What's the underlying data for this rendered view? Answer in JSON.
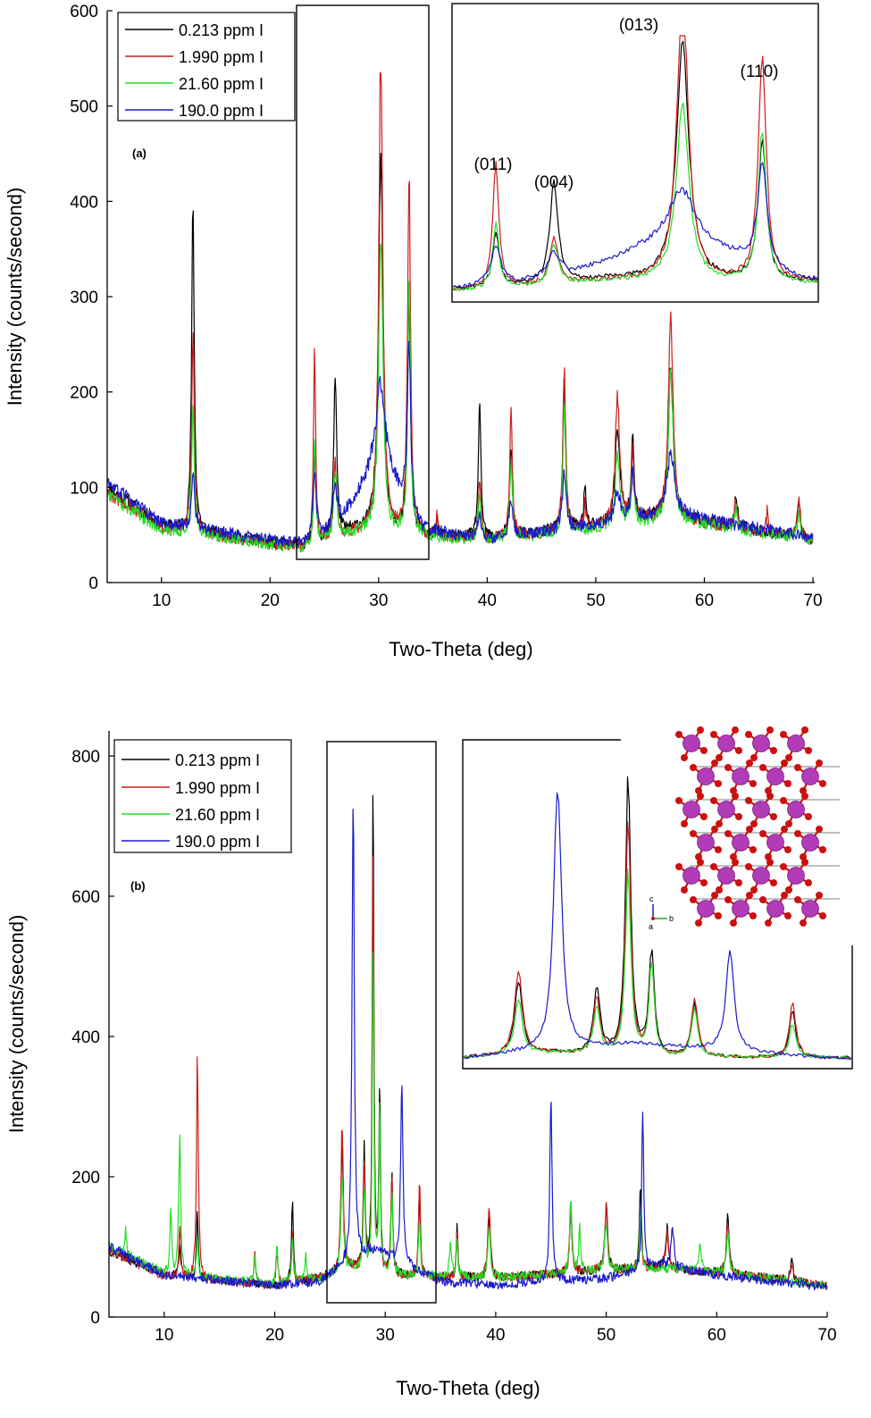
{
  "colors": {
    "0.213 ppm I": "#000000",
    "1.990 ppm I": "#cc1f1f",
    "21.60 ppm I": "#22dd22",
    "190.0 ppm I": "#1a1acc",
    "atom_I": "#b23cb8",
    "atom_O": "#cc1010"
  },
  "chart_data": [
    {
      "panel": "(a)",
      "type": "line",
      "xlabel": "Two-Theta (deg)",
      "ylabel": "Intensity (counts/second)",
      "xlim": [
        5,
        70
      ],
      "ylim": [
        0,
        600
      ],
      "xticks": [
        10,
        20,
        30,
        40,
        50,
        60,
        70
      ],
      "yticks": [
        0,
        100,
        200,
        300,
        400,
        500,
        600
      ],
      "legend": [
        "0.213 ppm I",
        "1.990 ppm I",
        "21.60 ppm I",
        "190.0 ppm I"
      ],
      "legend_position": "top-left",
      "zoom_box_x": [
        22.7,
        34.6
      ],
      "inset_peak_labels": [
        "(011)",
        "(004)",
        "(013)",
        "(110)"
      ],
      "series": [
        {
          "name": "0.213 ppm I",
          "background": [
            [
              5,
              100
            ],
            [
              10,
              60
            ],
            [
              20,
              42
            ],
            [
              23,
              38
            ],
            [
              28,
              55
            ],
            [
              34,
              50
            ],
            [
              40,
              45
            ],
            [
              50,
              60
            ],
            [
              57,
              70
            ],
            [
              62,
              60
            ],
            [
              70,
              45
            ]
          ],
          "peaks": [
            [
              12.9,
              345,
              0.14
            ],
            [
              24.1,
              95,
              0.12
            ],
            [
              26.0,
              170,
              0.16
            ],
            [
              30.2,
              400,
              0.25
            ],
            [
              32.8,
              240,
              0.16
            ],
            [
              35.4,
              15,
              0.1
            ],
            [
              39.3,
              135,
              0.15
            ],
            [
              42.2,
              95,
              0.15
            ],
            [
              47.1,
              165,
              0.15
            ],
            [
              49.0,
              40,
              0.12
            ],
            [
              52.0,
              100,
              0.25
            ],
            [
              53.4,
              95,
              0.15
            ],
            [
              56.9,
              160,
              0.25
            ],
            [
              62.9,
              35,
              0.15
            ],
            [
              68.7,
              40,
              0.15
            ]
          ]
        },
        {
          "name": "1.990 ppm I",
          "background": [
            [
              5,
              95
            ],
            [
              10,
              58
            ],
            [
              20,
              40
            ],
            [
              23,
              36
            ],
            [
              28,
              52
            ],
            [
              34,
              48
            ],
            [
              40,
              44
            ],
            [
              50,
              58
            ],
            [
              57,
              68
            ],
            [
              62,
              58
            ],
            [
              70,
              44
            ]
          ],
          "peaks": [
            [
              12.9,
              210,
              0.14
            ],
            [
              24.1,
              210,
              0.12
            ],
            [
              26.0,
              80,
              0.16
            ],
            [
              30.2,
              500,
              0.22
            ],
            [
              32.8,
              380,
              0.16
            ],
            [
              35.4,
              25,
              0.1
            ],
            [
              39.3,
              60,
              0.15
            ],
            [
              42.2,
              130,
              0.15
            ],
            [
              47.1,
              175,
              0.15
            ],
            [
              49.0,
              25,
              0.12
            ],
            [
              52.0,
              130,
              0.25
            ],
            [
              53.4,
              75,
              0.15
            ],
            [
              56.9,
              220,
              0.25
            ],
            [
              62.9,
              30,
              0.15
            ],
            [
              65.8,
              25,
              0.12
            ],
            [
              68.7,
              45,
              0.15
            ]
          ]
        },
        {
          "name": "21.60 ppm I",
          "background": [
            [
              5,
              92
            ],
            [
              10,
              56
            ],
            [
              20,
              40
            ],
            [
              23,
              36
            ],
            [
              28,
              52
            ],
            [
              34,
              48
            ],
            [
              40,
              44
            ],
            [
              50,
              56
            ],
            [
              57,
              66
            ],
            [
              62,
              58
            ],
            [
              70,
              44
            ]
          ],
          "peaks": [
            [
              12.9,
              130,
              0.14
            ],
            [
              24.1,
              110,
              0.12
            ],
            [
              26.0,
              70,
              0.16
            ],
            [
              30.2,
              300,
              0.25
            ],
            [
              32.8,
              260,
              0.16
            ],
            [
              39.3,
              50,
              0.15
            ],
            [
              42.2,
              80,
              0.15
            ],
            [
              47.1,
              130,
              0.15
            ],
            [
              52.0,
              75,
              0.25
            ],
            [
              53.4,
              60,
              0.15
            ],
            [
              56.9,
              160,
              0.25
            ],
            [
              62.9,
              20,
              0.15
            ],
            [
              68.7,
              25,
              0.15
            ]
          ]
        },
        {
          "name": "190.0 ppm I",
          "background": [
            [
              5,
              105
            ],
            [
              10,
              62
            ],
            [
              20,
              45
            ],
            [
              23,
              40
            ],
            [
              26,
              55
            ],
            [
              28,
              90
            ],
            [
              30,
              130
            ],
            [
              34,
              55
            ],
            [
              40,
              45
            ],
            [
              50,
              60
            ],
            [
              57,
              75
            ],
            [
              62,
              62
            ],
            [
              70,
              48
            ]
          ],
          "peaks": [
            [
              12.9,
              65,
              0.15
            ],
            [
              24.1,
              65,
              0.2
            ],
            [
              26.0,
              45,
              0.25
            ],
            [
              30.2,
              80,
              0.5
            ],
            [
              32.8,
              175,
              0.18
            ],
            [
              39.3,
              25,
              0.2
            ],
            [
              42.2,
              40,
              0.2
            ],
            [
              47.1,
              60,
              0.2
            ],
            [
              52.0,
              30,
              0.3
            ],
            [
              53.4,
              45,
              0.2
            ],
            [
              56.9,
              65,
              0.35
            ]
          ]
        }
      ]
    },
    {
      "panel": "(b)",
      "type": "line",
      "xlabel": "Two-Theta (deg)",
      "ylabel": "Intensity (counts/second)",
      "xlim": [
        5,
        70
      ],
      "ylim": [
        0,
        800
      ],
      "xticks": [
        10,
        20,
        30,
        40,
        50,
        60,
        70
      ],
      "yticks": [
        0,
        200,
        400,
        600,
        800
      ],
      "legend": [
        "0.213 ppm I",
        "1.990 ppm I",
        "21.60 ppm I",
        "190.0 ppm I"
      ],
      "legend_position": "top-left",
      "zoom_box_x": [
        24.7,
        34.6
      ],
      "inset_axis_labels": [
        "c",
        "a",
        "b"
      ],
      "series": [
        {
          "name": "0.213 ppm I",
          "background": [
            [
              5,
              95
            ],
            [
              10,
              60
            ],
            [
              20,
              45
            ],
            [
              24,
              55
            ],
            [
              27,
              70
            ],
            [
              30,
              60
            ],
            [
              40,
              55
            ],
            [
              48,
              65
            ],
            [
              55,
              70
            ],
            [
              65,
              55
            ],
            [
              70,
              45
            ]
          ],
          "peaks": [
            [
              11.4,
              45,
              0.1
            ],
            [
              13.0,
              90,
              0.1
            ],
            [
              21.6,
              110,
              0.1
            ],
            [
              26.1,
              190,
              0.12
            ],
            [
              28.1,
              170,
              0.1
            ],
            [
              28.9,
              730,
              0.08
            ],
            [
              29.5,
              270,
              0.08
            ],
            [
              30.6,
              140,
              0.1
            ],
            [
              33.1,
              120,
              0.1
            ],
            [
              36.5,
              70,
              0.1
            ],
            [
              39.4,
              90,
              0.15
            ],
            [
              46.8,
              90,
              0.12
            ],
            [
              50.0,
              95,
              0.15
            ],
            [
              53.1,
              120,
              0.1
            ],
            [
              55.5,
              60,
              0.15
            ],
            [
              61.0,
              80,
              0.15
            ],
            [
              66.8,
              30,
              0.15
            ]
          ]
        },
        {
          "name": "1.990 ppm I",
          "background": [
            [
              5,
              95
            ],
            [
              10,
              58
            ],
            [
              20,
              44
            ],
            [
              24,
              55
            ],
            [
              27,
              70
            ],
            [
              30,
              58
            ],
            [
              40,
              55
            ],
            [
              48,
              65
            ],
            [
              55,
              70
            ],
            [
              65,
              55
            ],
            [
              70,
              45
            ]
          ],
          "peaks": [
            [
              11.4,
              70,
              0.1
            ],
            [
              13.0,
              320,
              0.1
            ],
            [
              18.2,
              40,
              0.1
            ],
            [
              20.2,
              50,
              0.1
            ],
            [
              21.6,
              70,
              0.1
            ],
            [
              26.1,
              215,
              0.12
            ],
            [
              28.1,
              150,
              0.1
            ],
            [
              28.9,
              610,
              0.08
            ],
            [
              29.5,
              240,
              0.08
            ],
            [
              30.6,
              150,
              0.1
            ],
            [
              33.1,
              140,
              0.1
            ],
            [
              36.5,
              60,
              0.1
            ],
            [
              39.4,
              95,
              0.15
            ],
            [
              46.8,
              100,
              0.12
            ],
            [
              50.0,
              90,
              0.15
            ],
            [
              53.1,
              90,
              0.1
            ],
            [
              55.5,
              50,
              0.15
            ],
            [
              61.0,
              70,
              0.15
            ],
            [
              66.8,
              25,
              0.15
            ]
          ]
        },
        {
          "name": "21.60 ppm I",
          "background": [
            [
              5,
              100
            ],
            [
              10,
              62
            ],
            [
              20,
              46
            ],
            [
              24,
              55
            ],
            [
              27,
              70
            ],
            [
              30,
              60
            ],
            [
              40,
              55
            ],
            [
              48,
              65
            ],
            [
              55,
              70
            ],
            [
              65,
              55
            ],
            [
              70,
              45
            ]
          ],
          "peaks": [
            [
              6.5,
              35,
              0.1
            ],
            [
              10.6,
              90,
              0.1
            ],
            [
              11.4,
              205,
              0.1
            ],
            [
              13.0,
              55,
              0.1
            ],
            [
              18.2,
              40,
              0.1
            ],
            [
              20.2,
              55,
              0.1
            ],
            [
              21.6,
              60,
              0.1
            ],
            [
              22.8,
              40,
              0.1
            ],
            [
              26.1,
              140,
              0.12
            ],
            [
              28.1,
              120,
              0.1
            ],
            [
              28.9,
              480,
              0.08
            ],
            [
              29.5,
              240,
              0.08
            ],
            [
              30.6,
              120,
              0.1
            ],
            [
              33.1,
              85,
              0.1
            ],
            [
              35.9,
              55,
              0.1
            ],
            [
              36.5,
              50,
              0.1
            ],
            [
              39.4,
              70,
              0.15
            ],
            [
              46.8,
              100,
              0.12
            ],
            [
              47.6,
              60,
              0.1
            ],
            [
              50.0,
              70,
              0.15
            ],
            [
              53.1,
              80,
              0.1
            ],
            [
              58.5,
              35,
              0.15
            ],
            [
              61.0,
              60,
              0.15
            ]
          ]
        },
        {
          "name": "190.0 ppm I",
          "background": [
            [
              5,
              100
            ],
            [
              10,
              60
            ],
            [
              20,
              45
            ],
            [
              24,
              50
            ],
            [
              27,
              80
            ],
            [
              29,
              95
            ],
            [
              31,
              80
            ],
            [
              35,
              50
            ],
            [
              40,
              45
            ],
            [
              50,
              55
            ],
            [
              55,
              75
            ],
            [
              60,
              60
            ],
            [
              70,
              42
            ]
          ],
          "peaks": [
            [
              27.1,
              680,
              0.12
            ],
            [
              31.5,
              265,
              0.12
            ],
            [
              45.0,
              270,
              0.12
            ],
            [
              53.3,
              230,
              0.1
            ],
            [
              56.0,
              55,
              0.15
            ]
          ]
        }
      ]
    }
  ]
}
